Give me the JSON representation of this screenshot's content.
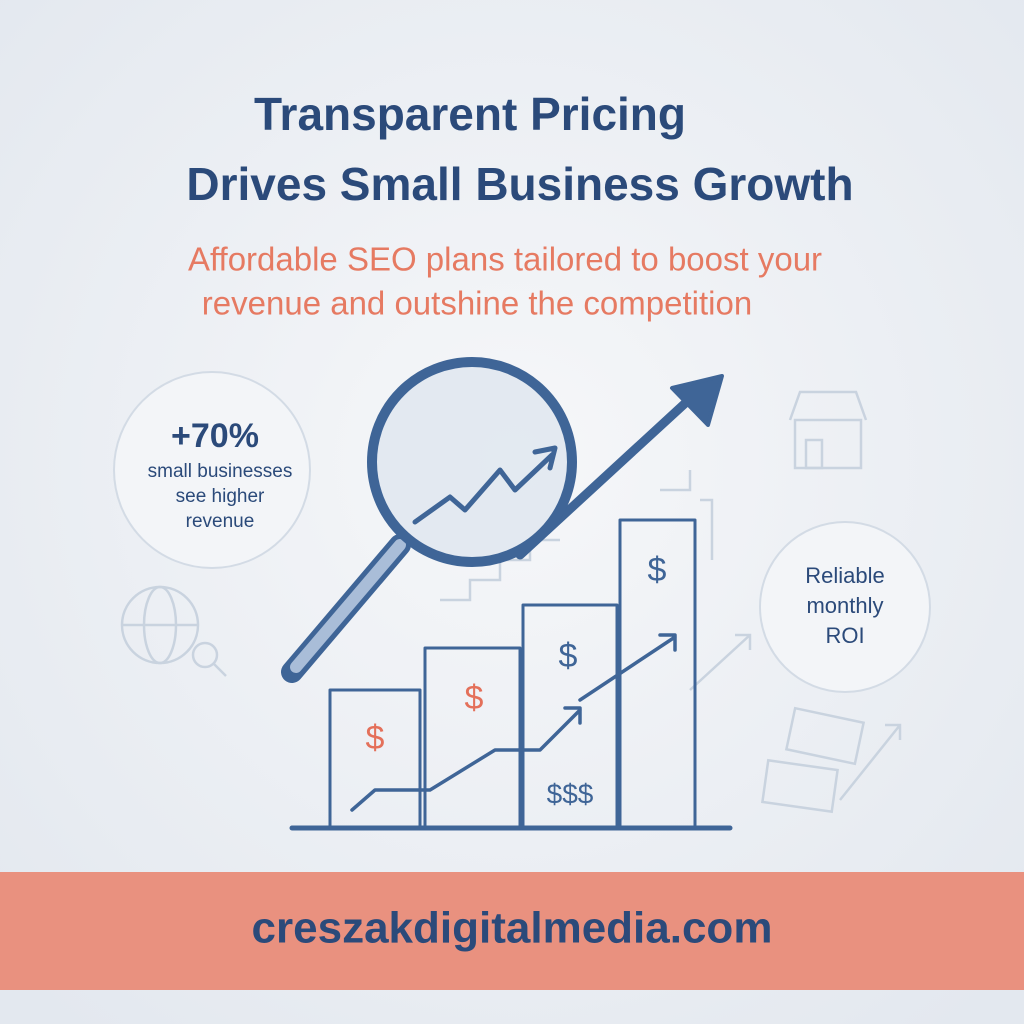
{
  "header": {
    "title_lines": [
      "Transparent Pricing",
      "Drives Small Business Growth"
    ],
    "subtitle_lines": [
      "Affordable SEO plans tailored to boost your",
      "revenue and outshine the competition"
    ]
  },
  "stat_left": {
    "figure": "+70%",
    "lines": [
      "small businesses",
      "see higher",
      "revenue"
    ]
  },
  "stat_right": {
    "lines": [
      "Reliable",
      "monthly",
      "ROI"
    ]
  },
  "illustration": {
    "bar_labels": [
      "$",
      "$",
      "$",
      "$",
      "$$$"
    ]
  },
  "footer": {
    "url": "creszakdigitalmedia.com"
  }
}
